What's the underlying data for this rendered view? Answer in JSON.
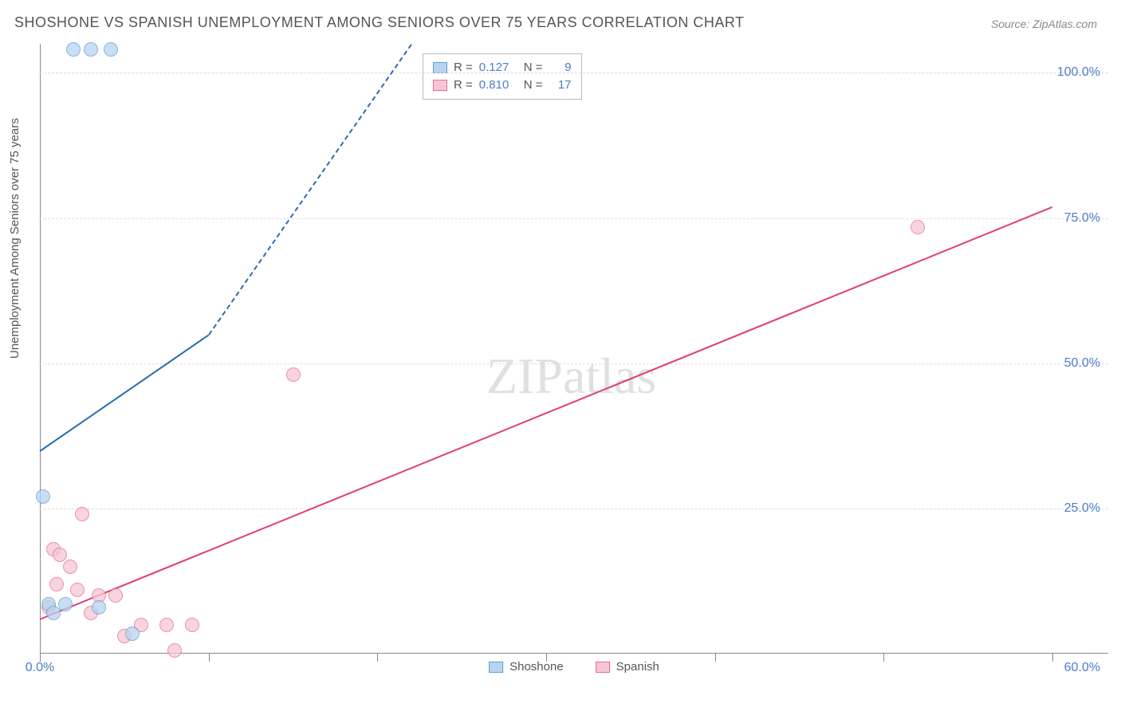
{
  "title": "SHOSHONE VS SPANISH UNEMPLOYMENT AMONG SENIORS OVER 75 YEARS CORRELATION CHART",
  "source": "Source: ZipAtlas.com",
  "ylabel": "Unemployment Among Seniors over 75 years",
  "watermark_bold": "ZIP",
  "watermark_thin": "atlas",
  "chart": {
    "type": "scatter",
    "xlim": [
      0,
      60
    ],
    "ylim": [
      0,
      105
    ],
    "x_ticks": [
      0,
      10,
      20,
      30,
      40,
      50,
      60
    ],
    "x_tick_labels": {
      "0": "0.0%",
      "60": "60.0%"
    },
    "y_grid": [
      25,
      50,
      75,
      100
    ],
    "y_tick_labels": {
      "25": "25.0%",
      "50": "50.0%",
      "75": "75.0%",
      "100": "100.0%"
    },
    "background_color": "#ffffff",
    "grid_color": "#dddddd",
    "axis_color": "#888888",
    "tick_label_color": "#4a7ec9",
    "marker_size": 18,
    "marker_opacity": 0.75,
    "line_width": 2
  },
  "series": {
    "shoshone": {
      "label": "Shoshone",
      "fill": "#b8d4f0",
      "stroke": "#5a9fd4",
      "line_color": "#2b6cb0",
      "r_value": "0.127",
      "n_value": "9",
      "points": [
        [
          2.0,
          104
        ],
        [
          3.0,
          104
        ],
        [
          4.2,
          104
        ],
        [
          0.2,
          27
        ],
        [
          0.5,
          8.5
        ],
        [
          1.5,
          8.5
        ],
        [
          3.5,
          8
        ],
        [
          0.8,
          7
        ],
        [
          5.5,
          3.5
        ]
      ],
      "trend_solid": {
        "x1": 0,
        "y1": 35,
        "x2": 10,
        "y2": 55
      },
      "trend_dashed": {
        "x1": 10,
        "y1": 55,
        "x2": 22,
        "y2": 105
      }
    },
    "spanish": {
      "label": "Spanish",
      "fill": "#f6c6d4",
      "stroke": "#e76b94",
      "line_color": "#e23d75",
      "r_value": "0.810",
      "n_value": "17",
      "points": [
        [
          52,
          73.5
        ],
        [
          15,
          48
        ],
        [
          2.5,
          24
        ],
        [
          0.8,
          18
        ],
        [
          1.2,
          17
        ],
        [
          1.8,
          15
        ],
        [
          1.0,
          12
        ],
        [
          2.2,
          11
        ],
        [
          3.5,
          10
        ],
        [
          4.5,
          10
        ],
        [
          0.5,
          8
        ],
        [
          3.0,
          7
        ],
        [
          6.0,
          5
        ],
        [
          7.5,
          5
        ],
        [
          9.0,
          5
        ],
        [
          5.0,
          3
        ],
        [
          8.0,
          0.5
        ]
      ],
      "trend_solid": {
        "x1": 0,
        "y1": 6,
        "x2": 60,
        "y2": 77
      }
    }
  },
  "stats_box": {
    "rows": [
      {
        "key": "shoshone",
        "r_label": "R =",
        "n_label": "N ="
      },
      {
        "key": "spanish",
        "r_label": "R =",
        "n_label": "N ="
      }
    ]
  }
}
